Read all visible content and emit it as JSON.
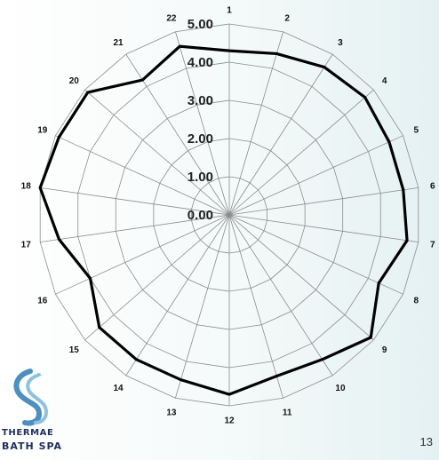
{
  "chart_data": {
    "type": "radar",
    "categories": [
      "1",
      "2",
      "3",
      "4",
      "5",
      "6",
      "7",
      "8",
      "9",
      "10",
      "11",
      "12",
      "13",
      "14",
      "15",
      "16",
      "17",
      "18",
      "19",
      "20",
      "21",
      "22"
    ],
    "ylim": [
      0,
      5
    ],
    "tick_labels": [
      "0.00",
      "1.00",
      "2.00",
      "3.00",
      "4.00",
      "5.00"
    ],
    "series": [
      {
        "values": [
          4.3,
          4.4,
          4.6,
          4.7,
          4.6,
          4.6,
          4.7,
          4.3,
          4.9,
          4.5,
          4.4,
          4.7,
          4.5,
          4.5,
          4.5,
          4.0,
          4.5,
          5.0,
          4.9,
          4.9,
          4.2,
          4.6
        ]
      }
    ],
    "colors": {
      "series_line": "#000000",
      "grid": "#8c8c8c"
    }
  },
  "logo": {
    "line1": "THERMAE",
    "line2": "BATH SPA"
  },
  "page_number": "13"
}
